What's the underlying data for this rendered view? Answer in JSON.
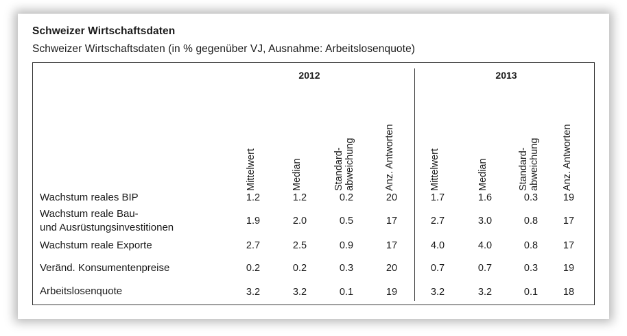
{
  "title": "Schweizer Wirtschaftsdaten",
  "subtitle": "Schweizer Wirtschaftsdaten (in % gegenüber VJ, Ausnahme: Arbeitslosenquote)",
  "years": [
    "2012",
    "2013"
  ],
  "columns": [
    {
      "label": "Mittelwert",
      "line1": "Mittelwert",
      "line2": ""
    },
    {
      "label": "Median",
      "line1": "Median",
      "line2": ""
    },
    {
      "label": "Standard-abweichung",
      "line1": "Standard-",
      "line2": "abweichung"
    },
    {
      "label": "Anz. Antworten",
      "line1": "Anz. Antworten",
      "line2": ""
    }
  ],
  "rows": [
    {
      "label": "Wachstum reales BIP",
      "label_line1": "Wachstum reales BIP",
      "label_line2": "",
      "values": [
        "1.2",
        "1.2",
        "0.2",
        "20",
        "1.7",
        "1.6",
        "0.3",
        "19"
      ]
    },
    {
      "label": "Wachstum reale Bau- und Ausrüstungsinvestitionen",
      "label_line1": "Wachstum reale Bau-",
      "label_line2": "und Ausrüstungsinvestitionen",
      "values": [
        "1.9",
        "2.0",
        "0.5",
        "17",
        "2.7",
        "3.0",
        "0.8",
        "17"
      ]
    },
    {
      "label": "Wachstum reale Exporte",
      "label_line1": "Wachstum reale Exporte",
      "label_line2": "",
      "values": [
        "2.7",
        "2.5",
        "0.9",
        "17",
        "4.0",
        "4.0",
        "0.8",
        "17"
      ]
    },
    {
      "label": "Veränd. Konsumentenpreise",
      "label_line1": "Veränd. Konsumentenpreise",
      "label_line2": "",
      "values": [
        "0.2",
        "0.2",
        "0.3",
        "20",
        "0.7",
        "0.7",
        "0.3",
        "19"
      ]
    },
    {
      "label": "Arbeitslosenquote",
      "label_line1": "Arbeitslosenquote",
      "label_line2": "",
      "values": [
        "3.2",
        "3.2",
        "0.1",
        "19",
        "3.2",
        "3.2",
        "0.1",
        "18"
      ]
    }
  ]
}
